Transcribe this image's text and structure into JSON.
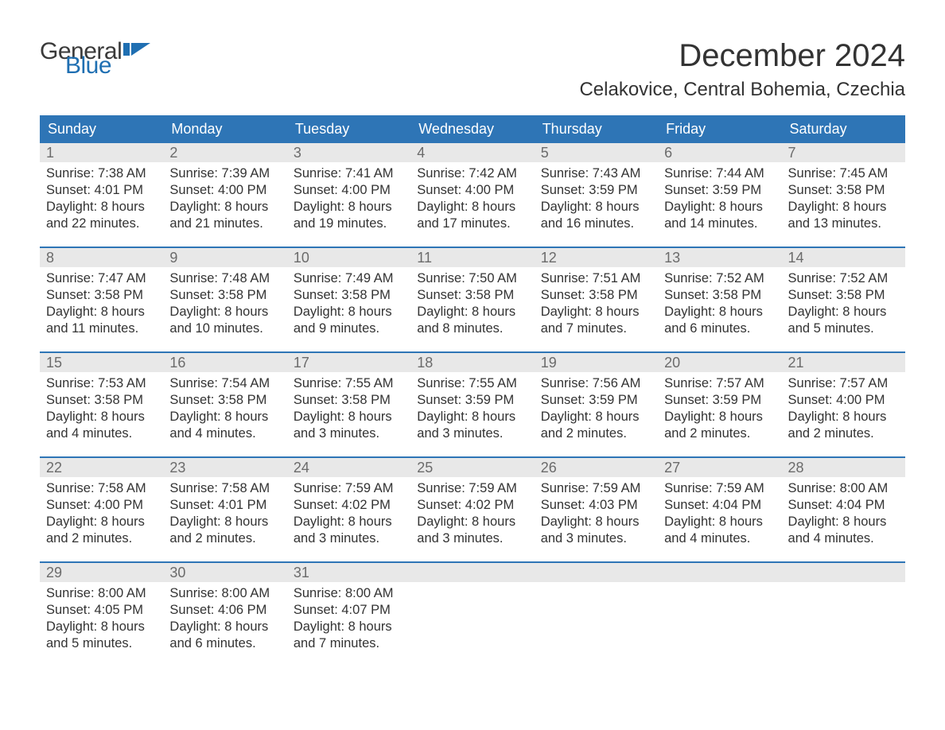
{
  "branding": {
    "logo_text_top": "General",
    "logo_text_bottom": "Blue",
    "logo_icon_color": "#1f6fb2",
    "logo_top_color": "#3a3a3a",
    "logo_bottom_color": "#1f6fb2"
  },
  "header": {
    "month_title": "December 2024",
    "location": "Celakovice, Central Bohemia, Czechia"
  },
  "styling": {
    "header_bar_bg": "#2e75b6",
    "header_bar_text": "#ffffff",
    "week_divider_color": "#2e75b6",
    "daynum_bg": "#e8e8e8",
    "daynum_color": "#6b6b6b",
    "body_text_color": "#333333",
    "page_bg": "#ffffff",
    "weekday_fontsize": 18,
    "daynum_fontsize": 18,
    "body_fontsize": 16.5,
    "month_title_fontsize": 40,
    "location_fontsize": 24
  },
  "weekdays": [
    "Sunday",
    "Monday",
    "Tuesday",
    "Wednesday",
    "Thursday",
    "Friday",
    "Saturday"
  ],
  "labels": {
    "sunrise_prefix": "Sunrise: ",
    "sunset_prefix": "Sunset: ",
    "daylight_prefix": "Daylight: "
  },
  "weeks": [
    [
      {
        "day": "1",
        "sunrise": "7:38 AM",
        "sunset": "4:01 PM",
        "daylight": "8 hours and 22 minutes."
      },
      {
        "day": "2",
        "sunrise": "7:39 AM",
        "sunset": "4:00 PM",
        "daylight": "8 hours and 21 minutes."
      },
      {
        "day": "3",
        "sunrise": "7:41 AM",
        "sunset": "4:00 PM",
        "daylight": "8 hours and 19 minutes."
      },
      {
        "day": "4",
        "sunrise": "7:42 AM",
        "sunset": "4:00 PM",
        "daylight": "8 hours and 17 minutes."
      },
      {
        "day": "5",
        "sunrise": "7:43 AM",
        "sunset": "3:59 PM",
        "daylight": "8 hours and 16 minutes."
      },
      {
        "day": "6",
        "sunrise": "7:44 AM",
        "sunset": "3:59 PM",
        "daylight": "8 hours and 14 minutes."
      },
      {
        "day": "7",
        "sunrise": "7:45 AM",
        "sunset": "3:58 PM",
        "daylight": "8 hours and 13 minutes."
      }
    ],
    [
      {
        "day": "8",
        "sunrise": "7:47 AM",
        "sunset": "3:58 PM",
        "daylight": "8 hours and 11 minutes."
      },
      {
        "day": "9",
        "sunrise": "7:48 AM",
        "sunset": "3:58 PM",
        "daylight": "8 hours and 10 minutes."
      },
      {
        "day": "10",
        "sunrise": "7:49 AM",
        "sunset": "3:58 PM",
        "daylight": "8 hours and 9 minutes."
      },
      {
        "day": "11",
        "sunrise": "7:50 AM",
        "sunset": "3:58 PM",
        "daylight": "8 hours and 8 minutes."
      },
      {
        "day": "12",
        "sunrise": "7:51 AM",
        "sunset": "3:58 PM",
        "daylight": "8 hours and 7 minutes."
      },
      {
        "day": "13",
        "sunrise": "7:52 AM",
        "sunset": "3:58 PM",
        "daylight": "8 hours and 6 minutes."
      },
      {
        "day": "14",
        "sunrise": "7:52 AM",
        "sunset": "3:58 PM",
        "daylight": "8 hours and 5 minutes."
      }
    ],
    [
      {
        "day": "15",
        "sunrise": "7:53 AM",
        "sunset": "3:58 PM",
        "daylight": "8 hours and 4 minutes."
      },
      {
        "day": "16",
        "sunrise": "7:54 AM",
        "sunset": "3:58 PM",
        "daylight": "8 hours and 4 minutes."
      },
      {
        "day": "17",
        "sunrise": "7:55 AM",
        "sunset": "3:58 PM",
        "daylight": "8 hours and 3 minutes."
      },
      {
        "day": "18",
        "sunrise": "7:55 AM",
        "sunset": "3:59 PM",
        "daylight": "8 hours and 3 minutes."
      },
      {
        "day": "19",
        "sunrise": "7:56 AM",
        "sunset": "3:59 PM",
        "daylight": "8 hours and 2 minutes."
      },
      {
        "day": "20",
        "sunrise": "7:57 AM",
        "sunset": "3:59 PM",
        "daylight": "8 hours and 2 minutes."
      },
      {
        "day": "21",
        "sunrise": "7:57 AM",
        "sunset": "4:00 PM",
        "daylight": "8 hours and 2 minutes."
      }
    ],
    [
      {
        "day": "22",
        "sunrise": "7:58 AM",
        "sunset": "4:00 PM",
        "daylight": "8 hours and 2 minutes."
      },
      {
        "day": "23",
        "sunrise": "7:58 AM",
        "sunset": "4:01 PM",
        "daylight": "8 hours and 2 minutes."
      },
      {
        "day": "24",
        "sunrise": "7:59 AM",
        "sunset": "4:02 PM",
        "daylight": "8 hours and 3 minutes."
      },
      {
        "day": "25",
        "sunrise": "7:59 AM",
        "sunset": "4:02 PM",
        "daylight": "8 hours and 3 minutes."
      },
      {
        "day": "26",
        "sunrise": "7:59 AM",
        "sunset": "4:03 PM",
        "daylight": "8 hours and 3 minutes."
      },
      {
        "day": "27",
        "sunrise": "7:59 AM",
        "sunset": "4:04 PM",
        "daylight": "8 hours and 4 minutes."
      },
      {
        "day": "28",
        "sunrise": "8:00 AM",
        "sunset": "4:04 PM",
        "daylight": "8 hours and 4 minutes."
      }
    ],
    [
      {
        "day": "29",
        "sunrise": "8:00 AM",
        "sunset": "4:05 PM",
        "daylight": "8 hours and 5 minutes."
      },
      {
        "day": "30",
        "sunrise": "8:00 AM",
        "sunset": "4:06 PM",
        "daylight": "8 hours and 6 minutes."
      },
      {
        "day": "31",
        "sunrise": "8:00 AM",
        "sunset": "4:07 PM",
        "daylight": "8 hours and 7 minutes."
      },
      null,
      null,
      null,
      null
    ]
  ]
}
